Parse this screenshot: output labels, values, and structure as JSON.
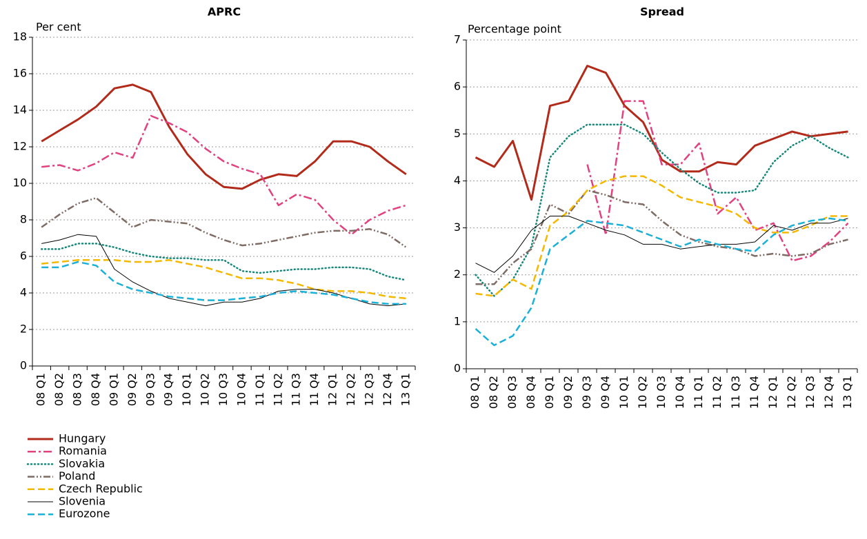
{
  "chart_data": [
    {
      "type": "line",
      "title": "APRC",
      "y_label": "Per cent",
      "categories": [
        "08 Q1",
        "08 Q2",
        "08 Q3",
        "08 Q4",
        "09 Q1",
        "09 Q2",
        "09 Q3",
        "09 Q4",
        "10 Q1",
        "10 Q2",
        "10 Q3",
        "10 Q4",
        "11 Q1",
        "11 Q2",
        "11 Q3",
        "11 Q4",
        "12 Q1",
        "12 Q2",
        "12 Q3",
        "12 Q4",
        "13 Q1"
      ],
      "ylim": [
        0,
        18
      ],
      "yticks": [
        0,
        2,
        4,
        6,
        8,
        10,
        12,
        14,
        16,
        18
      ],
      "grid": true,
      "series": [
        {
          "name": "Hungary",
          "color": "#b22a1a",
          "line_style": "solid",
          "width": 3,
          "values": [
            12.3,
            12.9,
            13.5,
            14.2,
            15.2,
            15.4,
            15.0,
            13.1,
            11.6,
            10.5,
            9.8,
            9.7,
            10.2,
            10.5,
            10.4,
            11.2,
            12.3,
            12.3,
            12.0,
            11.2,
            10.5
          ]
        },
        {
          "name": "Romania",
          "color": "#e2417f",
          "line_style": "dashdot",
          "width": 2.5,
          "values": [
            10.9,
            11.0,
            10.7,
            11.1,
            11.7,
            11.4,
            13.7,
            13.3,
            12.8,
            11.9,
            11.2,
            10.8,
            10.5,
            8.8,
            9.4,
            9.1,
            8.0,
            7.2,
            8.0,
            8.5,
            8.8
          ]
        },
        {
          "name": "Slovakia",
          "color": "#13877a",
          "line_style": "dotted",
          "width": 2.5,
          "values": [
            6.4,
            6.4,
            6.7,
            6.7,
            6.5,
            6.2,
            6.0,
            5.9,
            5.9,
            5.8,
            5.8,
            5.2,
            5.1,
            5.2,
            5.3,
            5.3,
            5.4,
            5.4,
            5.3,
            4.9,
            4.7
          ]
        },
        {
          "name": "Poland",
          "color": "#7d6b64",
          "line_style": "dashdotdot",
          "width": 2.5,
          "values": [
            7.6,
            8.3,
            8.9,
            9.2,
            8.4,
            7.6,
            8.0,
            7.9,
            7.8,
            7.3,
            6.9,
            6.6,
            6.7,
            6.9,
            7.1,
            7.3,
            7.4,
            7.4,
            7.5,
            7.2,
            6.5
          ]
        },
        {
          "name": "Czech Republic",
          "color": "#f5b800",
          "line_style": "dashed",
          "width": 2.5,
          "values": [
            5.6,
            5.7,
            5.8,
            5.8,
            5.8,
            5.7,
            5.7,
            5.8,
            5.6,
            5.4,
            5.1,
            4.8,
            4.8,
            4.7,
            4.5,
            4.2,
            4.1,
            4.1,
            4.0,
            3.8,
            3.7
          ]
        },
        {
          "name": "Slovenia",
          "color": "#000000",
          "line_style": "solid",
          "width": 1,
          "values": [
            6.7,
            6.9,
            7.2,
            7.1,
            5.3,
            4.6,
            4.1,
            3.7,
            3.5,
            3.3,
            3.5,
            3.5,
            3.7,
            4.1,
            4.2,
            4.2,
            4.0,
            3.7,
            3.4,
            3.3,
            3.4
          ]
        },
        {
          "name": "Eurozone",
          "color": "#1ab0d8",
          "line_style": "dashed",
          "width": 2.5,
          "values": [
            5.4,
            5.4,
            5.7,
            5.5,
            4.6,
            4.2,
            4.0,
            3.8,
            3.7,
            3.6,
            3.6,
            3.7,
            3.8,
            4.0,
            4.1,
            4.0,
            3.9,
            3.7,
            3.5,
            3.4,
            3.4
          ]
        }
      ]
    },
    {
      "type": "line",
      "title": "Spread",
      "y_label": "Percentage point",
      "categories": [
        "08 Q1",
        "08 Q2",
        "08 Q3",
        "08 Q4",
        "09 Q1",
        "09 Q2",
        "09 Q3",
        "09 Q4",
        "10 Q1",
        "10 Q2",
        "10 Q3",
        "10 Q4",
        "11 Q1",
        "11 Q2",
        "11 Q3",
        "11 Q4",
        "12 Q1",
        "12 Q2",
        "12 Q3",
        "12 Q4",
        "13 Q1"
      ],
      "ylim": [
        0,
        7
      ],
      "yticks": [
        0,
        1,
        2,
        3,
        4,
        5,
        6,
        7
      ],
      "grid": true,
      "series": [
        {
          "name": "Hungary",
          "color": "#b22a1a",
          "line_style": "solid",
          "width": 3,
          "values": [
            4.5,
            4.3,
            4.85,
            3.6,
            5.6,
            5.7,
            6.45,
            6.3,
            5.6,
            5.25,
            4.45,
            4.2,
            4.2,
            4.4,
            4.35,
            4.75,
            4.9,
            5.05,
            4.95,
            5.0,
            5.05
          ]
        },
        {
          "name": "Romania",
          "color": "#e2417f",
          "line_style": "dashdot",
          "width": 2.5,
          "values": [
            null,
            null,
            null,
            null,
            null,
            null,
            4.35,
            2.85,
            5.7,
            5.7,
            4.35,
            4.35,
            4.8,
            3.3,
            3.65,
            2.95,
            3.1,
            2.3,
            2.4,
            2.7,
            3.1
          ]
        },
        {
          "name": "Slovakia",
          "color": "#13877a",
          "line_style": "dotted",
          "width": 2.5,
          "values": [
            2.0,
            1.55,
            1.9,
            2.6,
            4.5,
            4.95,
            5.2,
            5.2,
            5.2,
            5.0,
            4.6,
            4.25,
            3.95,
            3.75,
            3.75,
            3.8,
            4.4,
            4.75,
            4.95,
            4.7,
            4.5
          ]
        },
        {
          "name": "Poland",
          "color": "#7d6b64",
          "line_style": "dashdotdot",
          "width": 2.5,
          "values": [
            1.8,
            1.8,
            2.25,
            2.55,
            3.5,
            3.3,
            3.8,
            3.7,
            3.55,
            3.5,
            3.15,
            2.85,
            2.7,
            2.6,
            2.55,
            2.4,
            2.45,
            2.4,
            2.45,
            2.65,
            2.75
          ]
        },
        {
          "name": "Czech Republic",
          "color": "#f5b800",
          "line_style": "dashed",
          "width": 2.5,
          "values": [
            1.6,
            1.55,
            1.9,
            1.7,
            3.05,
            3.35,
            3.8,
            4.0,
            4.1,
            4.1,
            3.9,
            3.65,
            3.55,
            3.45,
            3.3,
            3.0,
            2.9,
            2.9,
            3.05,
            3.25,
            3.25
          ]
        },
        {
          "name": "Slovenia",
          "color": "#000000",
          "line_style": "solid",
          "width": 1,
          "values": [
            2.25,
            2.05,
            2.4,
            2.95,
            3.25,
            3.25,
            3.1,
            2.95,
            2.85,
            2.65,
            2.65,
            2.55,
            2.6,
            2.65,
            2.65,
            2.7,
            3.05,
            2.95,
            3.1,
            3.1,
            3.2
          ]
        },
        {
          "name": "Eurozone",
          "color": "#1ab0d8",
          "line_style": "dashed",
          "width": 2.5,
          "values": [
            0.85,
            0.5,
            0.7,
            1.3,
            2.55,
            2.85,
            3.15,
            3.1,
            3.05,
            2.9,
            2.75,
            2.6,
            2.75,
            2.65,
            2.55,
            2.5,
            2.85,
            3.05,
            3.15,
            3.2,
            3.15
          ]
        }
      ]
    }
  ]
}
